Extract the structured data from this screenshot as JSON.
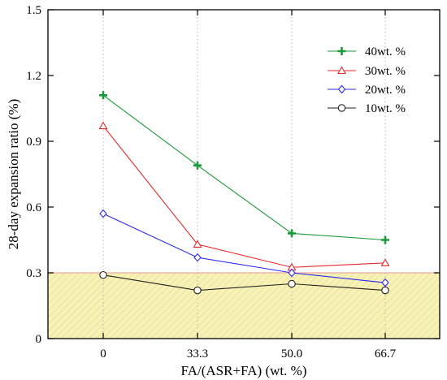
{
  "chart_data": {
    "type": "line",
    "title": "",
    "xlabel": "FA/(ASR+FA) (wt. %)",
    "ylabel": "28-day expansion ratio (%)",
    "categories": [
      "0",
      "33.3",
      "50.0",
      "66.7"
    ],
    "ylim": [
      0,
      1.5
    ],
    "yticks": [
      "0",
      "0.3",
      "0.6",
      "0.9",
      "1.2",
      "1.5"
    ],
    "grid": "x-dotted",
    "legend_position": "top-right",
    "threshold": {
      "value": 0.3,
      "region": "below",
      "fill": "#f5f0b0",
      "line_color": "#f0b8a8"
    },
    "series": [
      {
        "name": "40wt. %",
        "marker": "plus",
        "color": "#1a9a3a",
        "values": [
          1.11,
          0.79,
          0.48,
          0.45
        ]
      },
      {
        "name": "30wt. %",
        "marker": "triangle",
        "color": "#e8292b",
        "values": [
          0.97,
          0.43,
          0.325,
          0.345
        ]
      },
      {
        "name": "20wt. %",
        "marker": "diamond",
        "color": "#2b2bf0",
        "values": [
          0.57,
          0.37,
          0.3,
          0.255
        ]
      },
      {
        "name": "10wt. %",
        "marker": "circle",
        "color": "#222222",
        "values": [
          0.29,
          0.22,
          0.25,
          0.22
        ]
      }
    ]
  }
}
